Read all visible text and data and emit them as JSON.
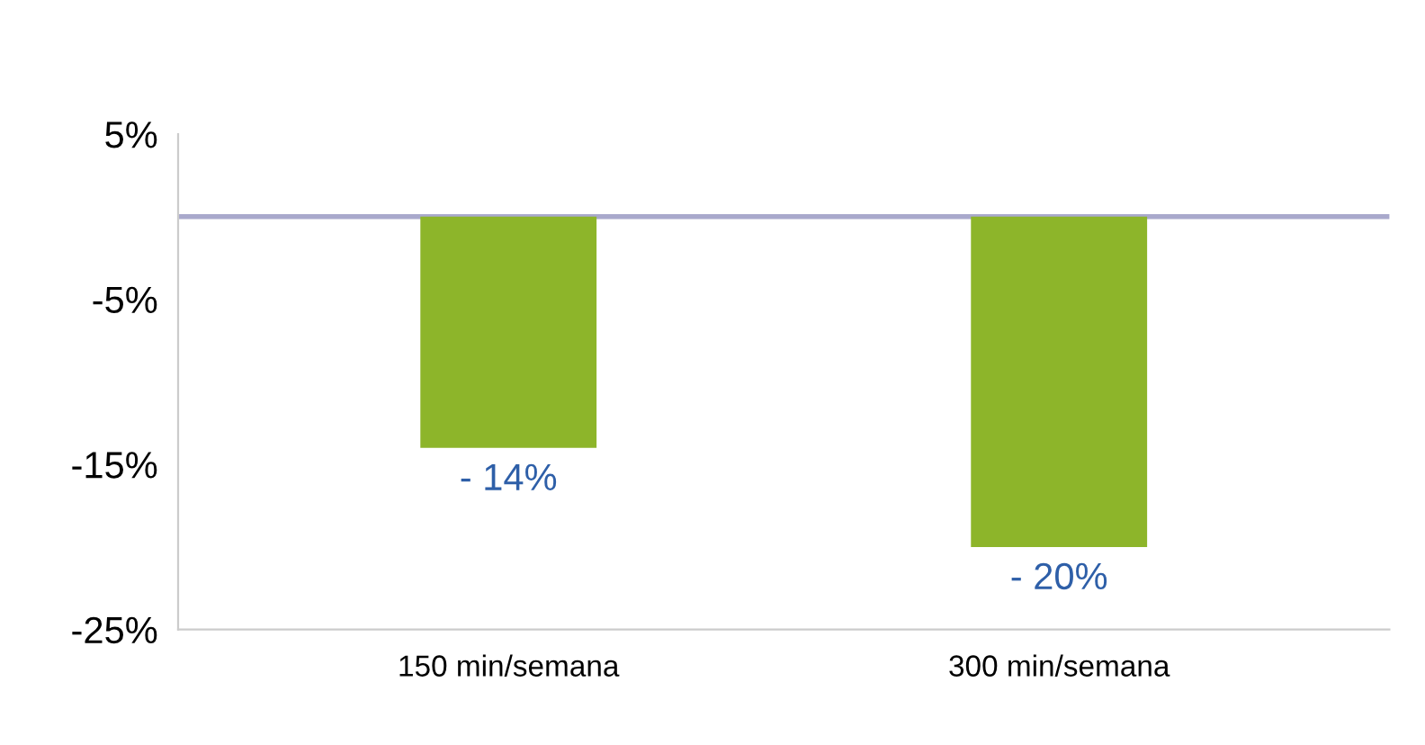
{
  "chart_data": {
    "type": "bar",
    "categories": [
      "150 min/semana",
      "300 min/semana"
    ],
    "values": [
      -14,
      -20
    ],
    "value_labels": [
      "- 14%",
      "- 20%"
    ],
    "color": "#8db52a",
    "ylim": [
      -25,
      5
    ],
    "yticks": [
      {
        "value": 5,
        "label": "5%"
      },
      {
        "value": -5,
        "label": "-5%"
      },
      {
        "value": -15,
        "label": "-15%"
      },
      {
        "value": -25,
        "label": "-25%"
      }
    ],
    "ref_lines": [
      {
        "axis": "y",
        "value": 0,
        "color": "#a9a9cc"
      }
    ],
    "grid": false
  }
}
